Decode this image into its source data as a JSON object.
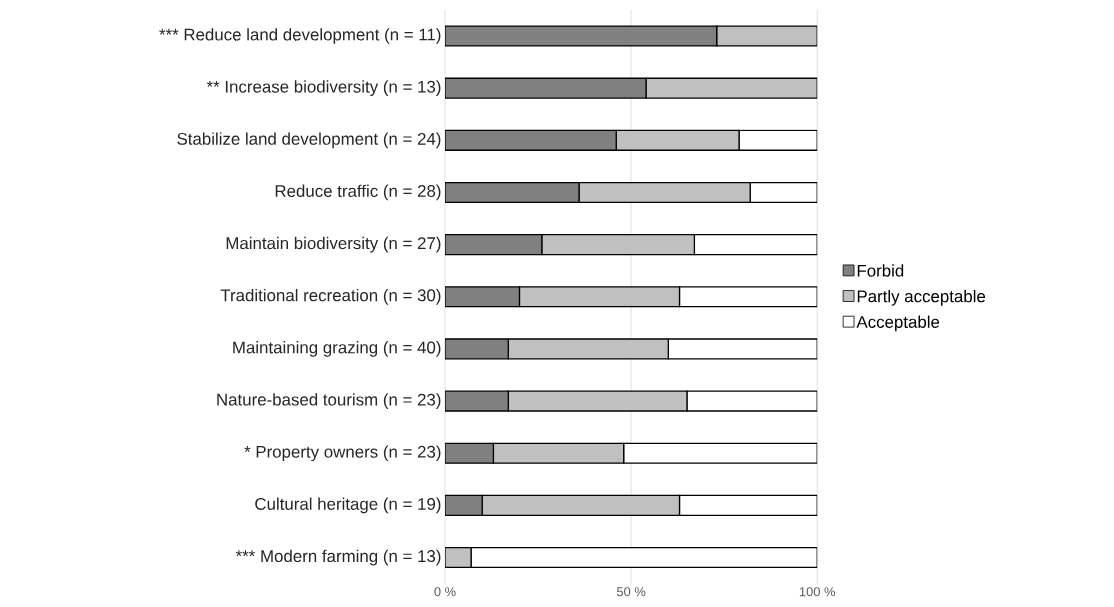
{
  "chart_data": {
    "type": "bar",
    "orientation": "horizontal",
    "stacked": true,
    "categories": [
      "*** Reduce land development  (n = 11)",
      "** Increase biodiversity (n = 13)",
      "Stabilize land development (n = 24)",
      "Reduce traffic (n = 28)",
      "Maintain biodiversity (n = 27)",
      "Traditional recreation (n = 30)",
      "Maintaining grazing (n = 40)",
      "Nature-based tourism (n = 23)",
      "* Property owners (n = 23)",
      "Cultural heritage (n = 19)",
      "*** Modern farming (n = 13)"
    ],
    "series": [
      {
        "name": "Forbid",
        "color": "#808080",
        "values": [
          73,
          54,
          46,
          36,
          26,
          20,
          17,
          17,
          13,
          10,
          0
        ]
      },
      {
        "name": "Partly acceptable",
        "color": "#c0c0c0",
        "values": [
          27,
          46,
          33,
          46,
          41,
          43,
          43,
          48,
          35,
          53,
          7
        ]
      },
      {
        "name": "Acceptable",
        "color": "#ffffff",
        "values": [
          0,
          0,
          21,
          18,
          33,
          37,
          40,
          35,
          52,
          37,
          93
        ]
      }
    ],
    "xlim": [
      0,
      100
    ],
    "xticks": [
      {
        "value": 0,
        "label": "0 %"
      },
      {
        "value": 50,
        "label": "50 %"
      },
      {
        "value": 100,
        "label": "100 %"
      }
    ],
    "grid": "x",
    "legend": "right"
  }
}
